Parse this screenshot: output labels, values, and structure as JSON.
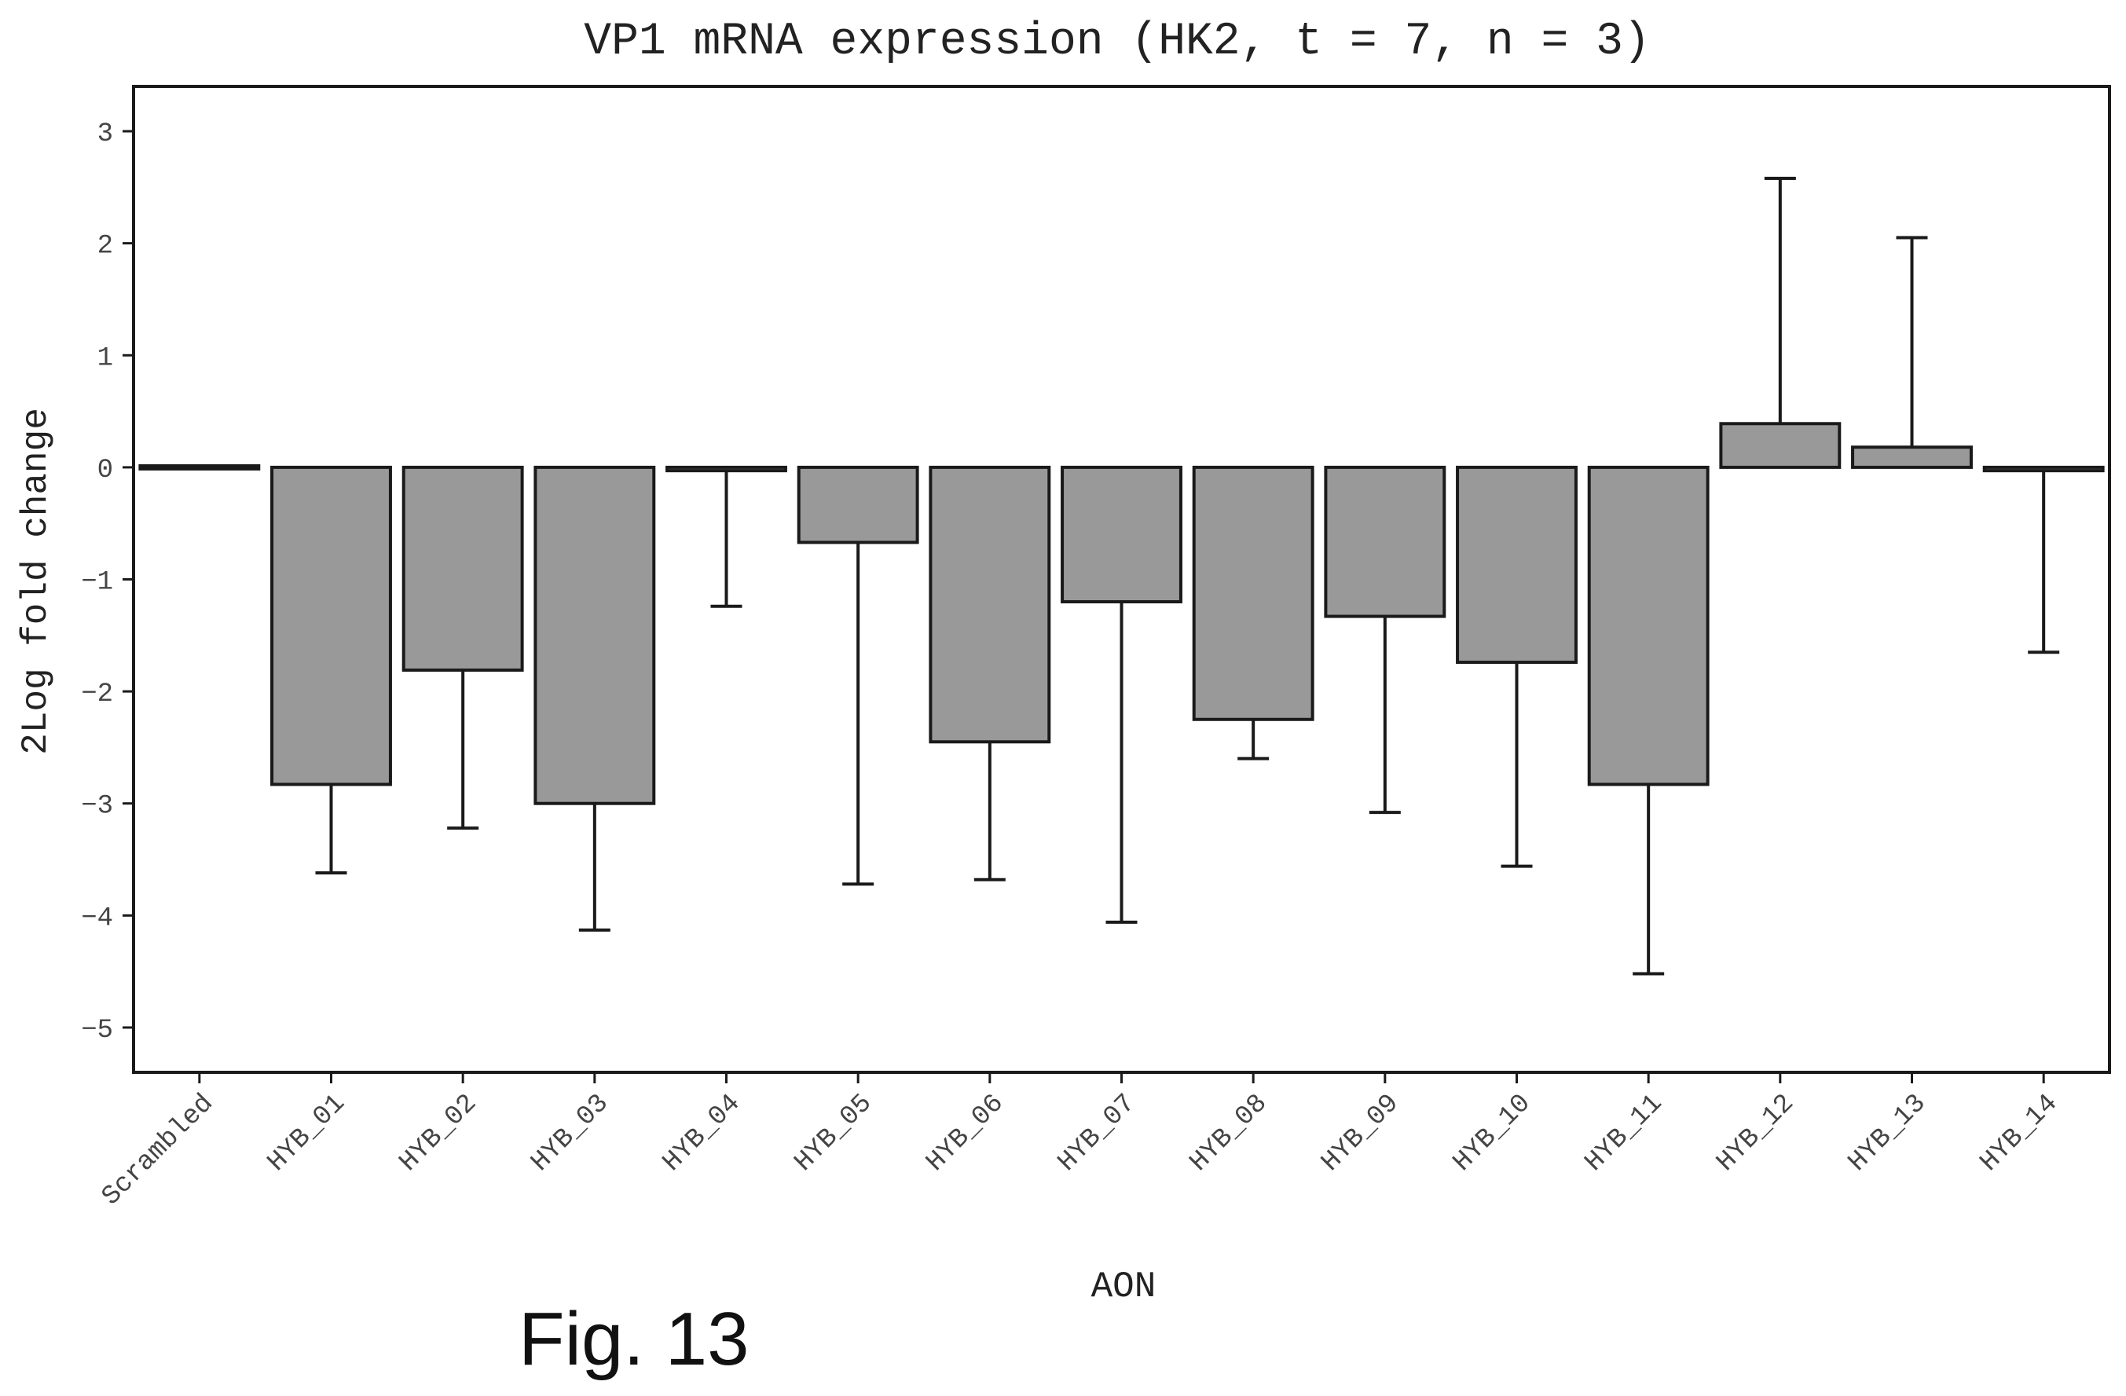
{
  "chart_data": {
    "type": "bar",
    "title": "VP1 mRNA expression (HK2, t = 7, n = 3)",
    "xlabel": "AON",
    "ylabel": "2Log fold change",
    "categories": [
      "Scrambled",
      "HYB_01",
      "HYB_02",
      "HYB_03",
      "HYB_04",
      "HYB_05",
      "HYB_06",
      "HYB_07",
      "HYB_08",
      "HYB_09",
      "HYB_10",
      "HYB_11",
      "HYB_12",
      "HYB_13",
      "HYB_14"
    ],
    "values": [
      0,
      -2.83,
      -1.81,
      -3.0,
      -0.03,
      -0.67,
      -2.45,
      -1.2,
      -2.25,
      -1.33,
      -1.74,
      -2.83,
      0.39,
      0.18,
      -0.03
    ],
    "error_upper": [
      null,
      null,
      null,
      null,
      null,
      null,
      null,
      null,
      null,
      null,
      null,
      null,
      2.58,
      2.05,
      null
    ],
    "error_lower": [
      null,
      -3.62,
      -3.22,
      -4.13,
      -1.24,
      -3.72,
      -3.68,
      -4.06,
      -2.6,
      -3.08,
      -3.56,
      -4.52,
      null,
      null,
      -1.65
    ],
    "yticks": [
      3,
      2,
      1,
      0,
      -1,
      -2,
      -3,
      -4,
      -5
    ],
    "ylim": [
      -5.4,
      3.4
    ],
    "grid": false,
    "colors": {
      "bar_fill": "#999999",
      "bar_stroke": "#1a1a1a",
      "axis": "#1a1a1a",
      "text": "#222222"
    }
  },
  "figure_label": "Fig. 13"
}
